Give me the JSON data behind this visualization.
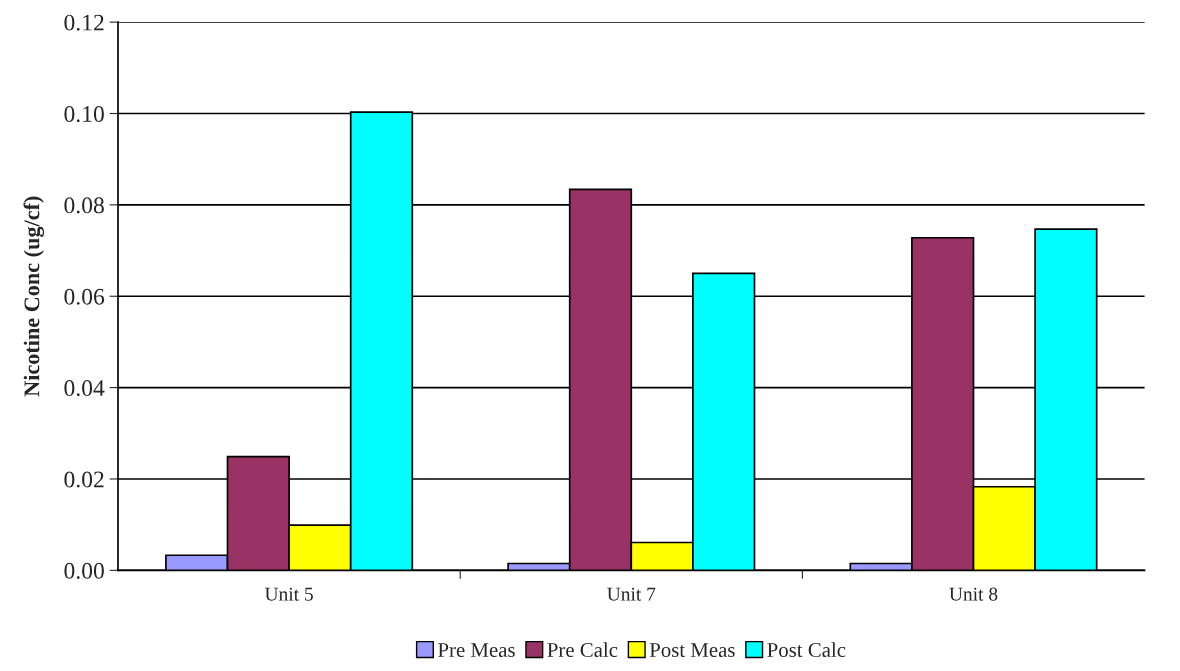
{
  "chart_data": {
    "type": "bar",
    "ylabel": "Nicotine Conc (ug/cf)",
    "categories": [
      "Unit 5",
      "Unit 7",
      "Unit 8"
    ],
    "series": [
      {
        "name": "Pre Meas",
        "color": "#9999ff",
        "values": [
          0.0033,
          0.0015,
          0.0015
        ]
      },
      {
        "name": "Pre Calc",
        "color": "#993366",
        "values": [
          0.0249,
          0.0834,
          0.0728
        ]
      },
      {
        "name": "Post Meas",
        "color": "#ffff00",
        "values": [
          0.0099,
          0.0061,
          0.0183
        ]
      },
      {
        "name": "Post Calc",
        "color": "#00ffff",
        "values": [
          0.1003,
          0.065,
          0.0747
        ]
      }
    ],
    "ylim": [
      0,
      0.12
    ],
    "yticks": [
      {
        "value": 0,
        "label": "0.00"
      },
      {
        "value": 0.02,
        "label": "0.02"
      },
      {
        "value": 0.04,
        "label": "0.04"
      },
      {
        "value": 0.06,
        "label": "0.06"
      },
      {
        "value": 0.08,
        "label": "0.08"
      },
      {
        "value": 0.1,
        "label": "0.10"
      },
      {
        "value": 0.12,
        "label": "0.12"
      }
    ],
    "grid": "y",
    "legend": "bottom"
  }
}
